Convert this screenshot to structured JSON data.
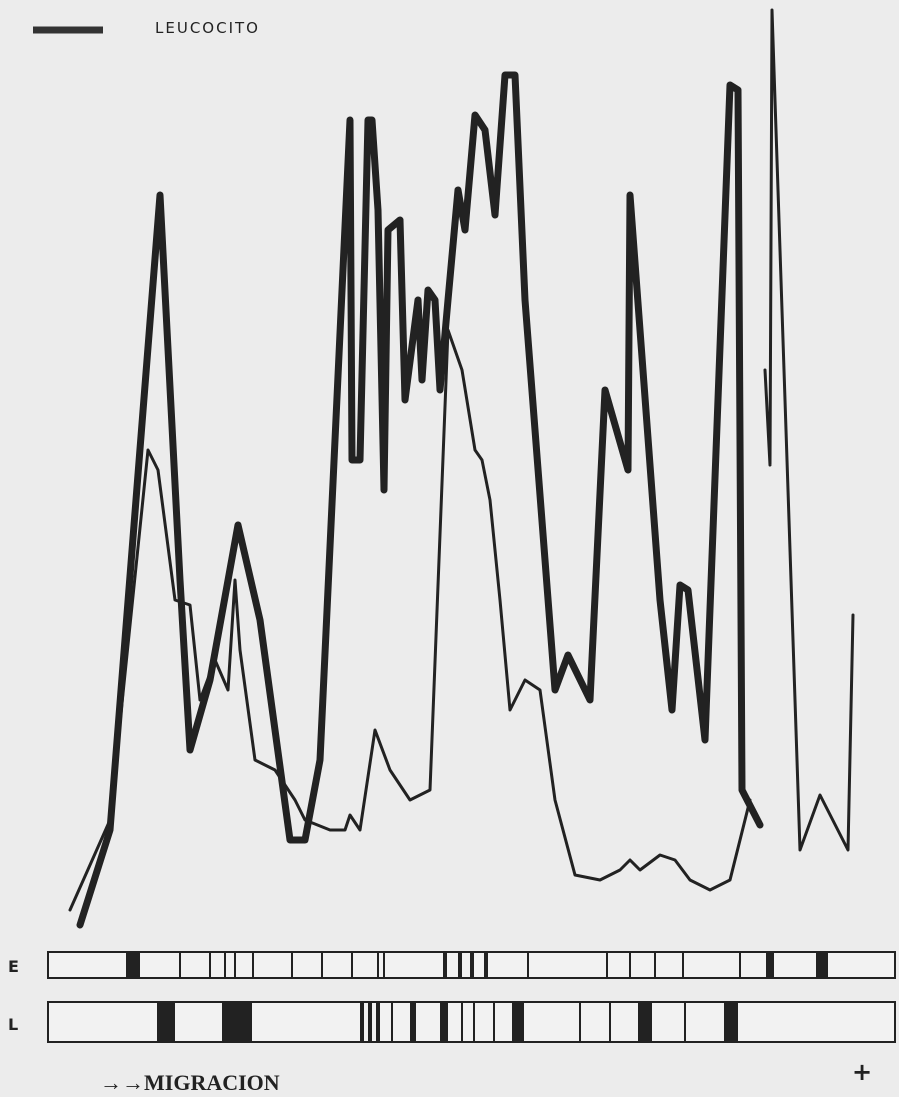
{
  "legend": {
    "label": "LEUCOCITO"
  },
  "strips": [
    {
      "label": "E"
    },
    {
      "label": "L"
    }
  ],
  "footer": {
    "direction": "→→MIGRACION",
    "pole": "+"
  }
}
